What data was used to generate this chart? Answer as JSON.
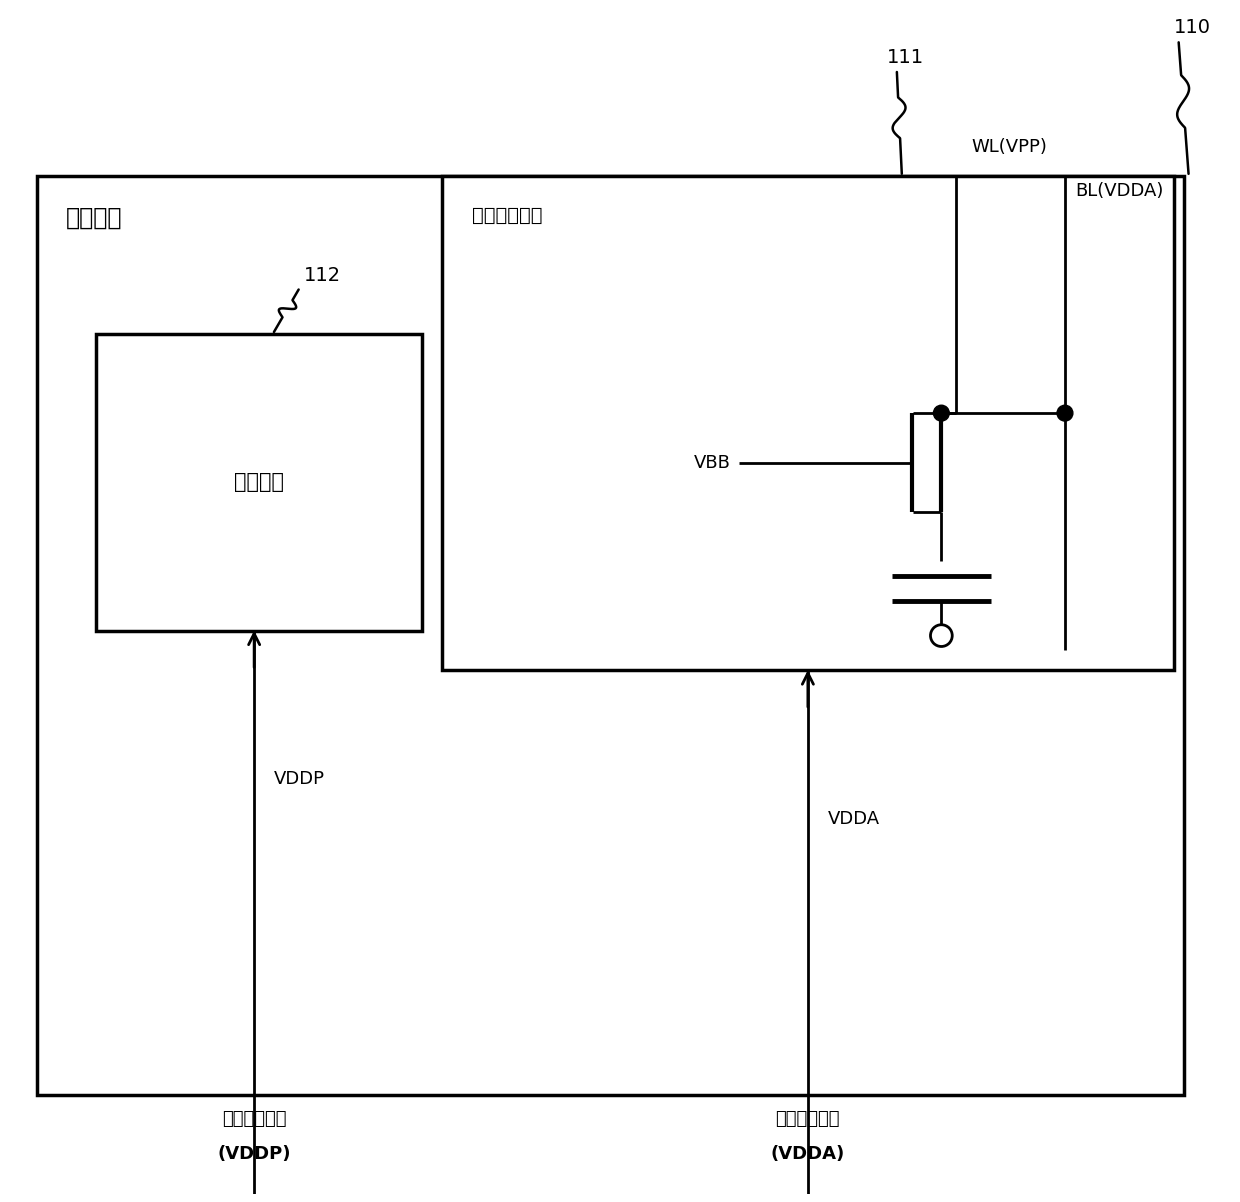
{
  "bg_color": "#ffffff",
  "line_color": "#000000",
  "fig_width": 12.4,
  "fig_height": 12.02,
  "label_110": "110",
  "label_111": "111",
  "label_112": "112",
  "label_chip": "存储芯片",
  "label_array": "存储单元阵列",
  "label_periph": "周边电路",
  "label_wl": "WL(VPP)",
  "label_bl": "BL(VDDA)",
  "label_vbb": "VBB",
  "label_vddp": "VDDP",
  "label_vdda": "VDDA",
  "label_ext1": "外部电源电压",
  "label_ext1b": "(VDDP)",
  "label_ext2": "外部电源电压",
  "label_ext2b": "(VDDA)"
}
